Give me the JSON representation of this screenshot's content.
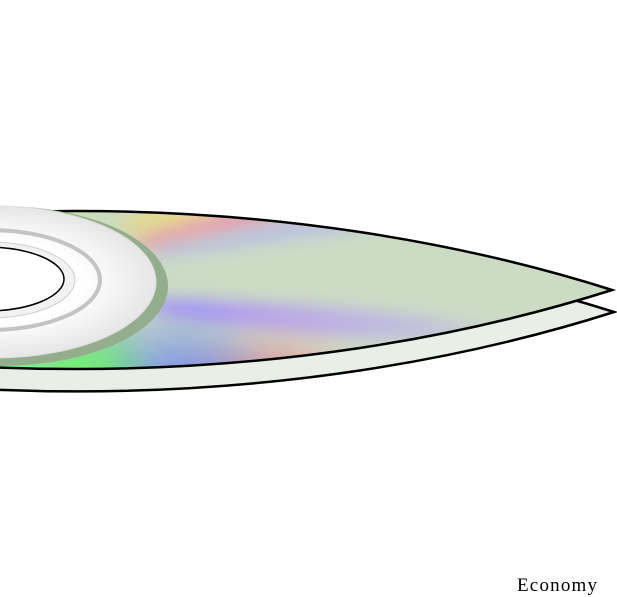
{
  "illustration": {
    "subject": "disc-icon",
    "colors": {
      "background": "#ffffff",
      "outline": "#000000",
      "disc_base": "#ccdcc4",
      "rim_edge": "#a8bda0",
      "hub_ring": "#e8e8e8",
      "hub_groove": "#c4c4c4",
      "hub_edge": "#8fa88a",
      "spectrum": [
        "#ff4466",
        "#ffcc33",
        "#ffffcc",
        "#99ff33",
        "#33cc66",
        "#3366ff",
        "#cc66ff",
        "#ff66cc"
      ]
    }
  },
  "caption": {
    "text": "Economy"
  }
}
